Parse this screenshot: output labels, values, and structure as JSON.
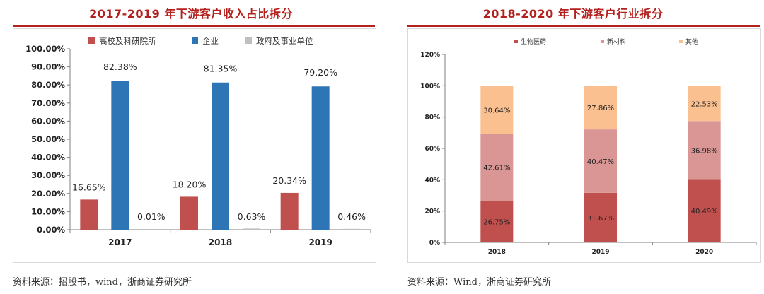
{
  "left": {
    "title": "2017-2019 年下游客户收入占比拆分",
    "source": "资料来源：招股书，wind，浙商证券研究所",
    "chart_data": {
      "type": "bar",
      "categories": [
        "2017",
        "2018",
        "2019"
      ],
      "series": [
        {
          "name": "高校及科研院所",
          "values": [
            16.65,
            18.2,
            20.34
          ],
          "labels": [
            "16.65%",
            "18.20%",
            "20.34%"
          ],
          "color": "#c0504d"
        },
        {
          "name": "企业",
          "values": [
            82.38,
            81.35,
            79.2
          ],
          "labels": [
            "82.38%",
            "81.35%",
            "79.20%"
          ],
          "color": "#2e75b6"
        },
        {
          "name": "政府及事业单位",
          "values": [
            0.01,
            0.63,
            0.46
          ],
          "labels": [
            "0.01%",
            "0.63%",
            "0.46%"
          ],
          "color": "#bfbfbf"
        }
      ],
      "ylim": [
        0,
        100
      ],
      "yticks": [
        "0.00%",
        "10.00%",
        "20.00%",
        "30.00%",
        "40.00%",
        "50.00%",
        "60.00%",
        "70.00%",
        "80.00%",
        "90.00%",
        "100.00%"
      ],
      "grid": false,
      "legend": "top"
    }
  },
  "right": {
    "title": "2018-2020 年下游客户行业拆分",
    "source": "资料来源：Wind，浙商证券研究所",
    "chart_data": {
      "type": "bar",
      "stacked": true,
      "categories": [
        "2018",
        "2019",
        "2020"
      ],
      "series": [
        {
          "name": "生物医药",
          "values": [
            26.75,
            31.67,
            40.49
          ],
          "labels": [
            "26.75%",
            "31.67%",
            "40.49%"
          ],
          "color": "#c0504d"
        },
        {
          "name": "新材料",
          "values": [
            42.61,
            40.47,
            36.98
          ],
          "labels": [
            "42.61%",
            "40.47%",
            "36.98%"
          ],
          "color": "#d99694"
        },
        {
          "name": "其他",
          "values": [
            30.64,
            27.86,
            22.53
          ],
          "labels": [
            "30.64%",
            "27.86%",
            "22.53%"
          ],
          "color": "#fac090"
        }
      ],
      "ylim": [
        0,
        120
      ],
      "yticks": [
        "0%",
        "20%",
        "40%",
        "60%",
        "80%",
        "100%",
        "120%"
      ],
      "grid": false,
      "legend": "top"
    }
  }
}
